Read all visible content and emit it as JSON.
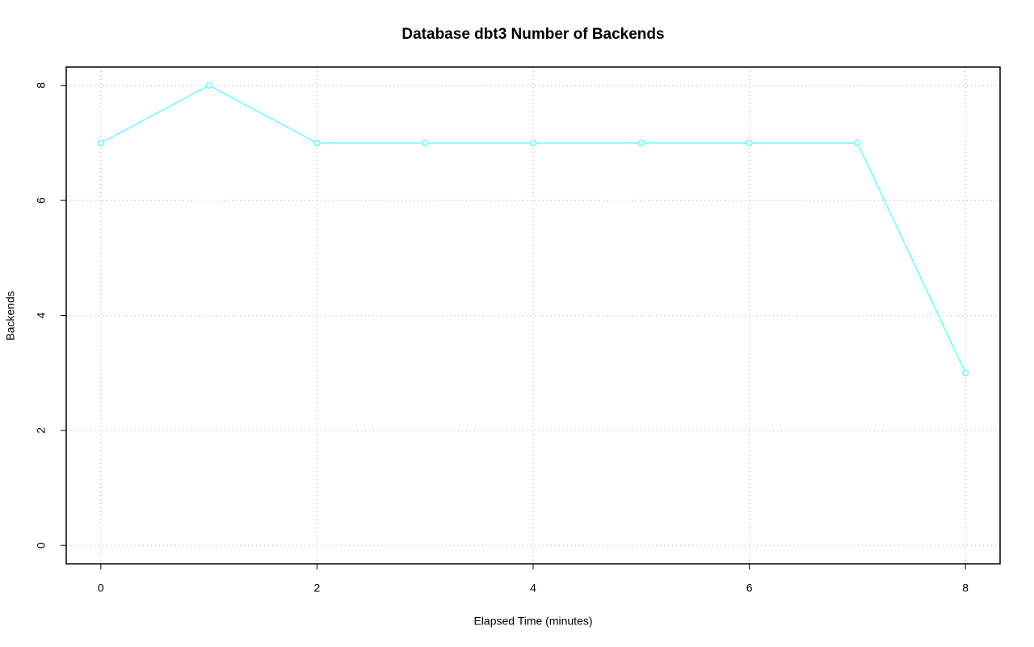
{
  "chart_data": {
    "type": "line",
    "title": "Database dbt3 Number of Backends",
    "x_label": "Elapsed Time (minutes)",
    "y_label": "Backends",
    "x": [
      0,
      1,
      2,
      3,
      4,
      5,
      6,
      7,
      8
    ],
    "values": [
      7,
      8,
      7,
      7,
      7,
      7,
      7,
      7,
      3
    ],
    "color": "#66ffff",
    "xlim": [
      -0.32,
      8.32
    ],
    "ylim": [
      -0.32,
      8.32
    ],
    "xticks": [
      0,
      2,
      4,
      6,
      8
    ],
    "yticks": [
      0,
      2,
      4,
      6,
      8
    ],
    "grid": true
  }
}
